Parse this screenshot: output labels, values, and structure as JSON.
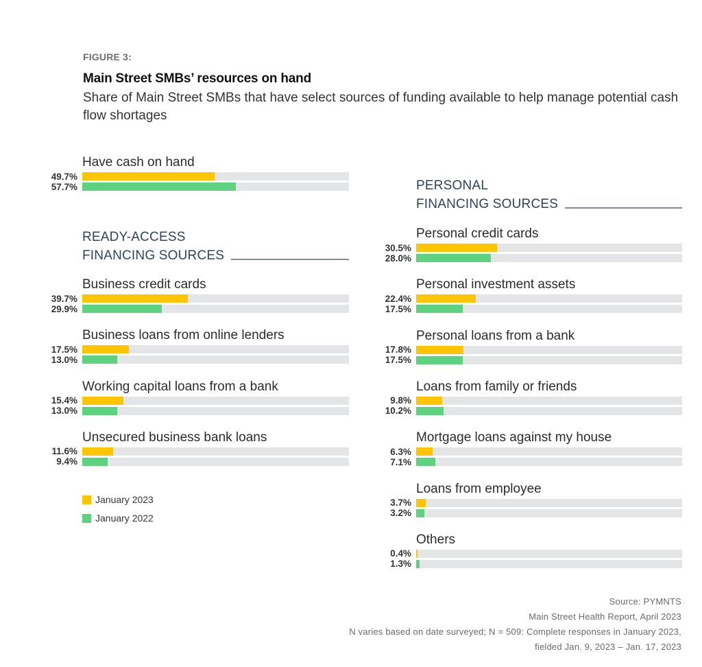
{
  "figure_label": "FIGURE 3:",
  "chart_data": {
    "type": "bar",
    "orientation": "horizontal",
    "title": "Main Street SMBs’ resources on hand",
    "subtitle": "Share of Main Street SMBs that have select sources of funding available to help manage potential cash flow shortages",
    "xlim": [
      0,
      100
    ],
    "unit": "%",
    "grid": false,
    "legend_placement": "bottom-left",
    "series": [
      {
        "name": "January 2023",
        "color": "#ffc600"
      },
      {
        "name": "January 2022",
        "color": "#5dd27f"
      }
    ],
    "track_color": "#e4e5e7",
    "groups": [
      {
        "section": null,
        "column": "left",
        "items": [
          {
            "label": "Have cash on hand",
            "values": [
              49.7,
              57.7
            ]
          }
        ]
      },
      {
        "section": [
          "READY-ACCESS",
          "FINANCING SOURCES"
        ],
        "column": "left",
        "items": [
          {
            "label": "Business credit cards",
            "values": [
              39.7,
              29.9
            ]
          },
          {
            "label": "Business loans from online lenders",
            "values": [
              17.5,
              13.0
            ]
          },
          {
            "label": "Working capital loans from a bank",
            "values": [
              15.4,
              13.0
            ]
          },
          {
            "label": "Unsecured business bank loans",
            "values": [
              11.6,
              9.4
            ]
          }
        ]
      },
      {
        "section": [
          "PERSONAL",
          "FINANCING SOURCES"
        ],
        "column": "right",
        "items": [
          {
            "label": "Personal credit cards",
            "values": [
              30.5,
              28.0
            ]
          },
          {
            "label": "Personal investment assets",
            "values": [
              22.4,
              17.5
            ]
          },
          {
            "label": "Personal loans from a bank",
            "values": [
              17.8,
              17.5
            ]
          },
          {
            "label": "Loans from family or friends",
            "values": [
              9.8,
              10.2
            ]
          },
          {
            "label": "Mortgage loans against my house",
            "values": [
              6.3,
              7.1
            ]
          },
          {
            "label": "Loans from employee",
            "values": [
              3.7,
              3.2
            ]
          },
          {
            "label": "Others",
            "values": [
              0.4,
              1.3
            ]
          }
        ]
      }
    ]
  },
  "footer": {
    "lines": [
      "Source: PYMNTS",
      "Main Street Health Report, April 2023",
      "N varies based on date surveyed; N = 509: Complete responses in January 2023,",
      "fielded Jan. 9, 2023 – Jan. 17, 2023"
    ]
  }
}
